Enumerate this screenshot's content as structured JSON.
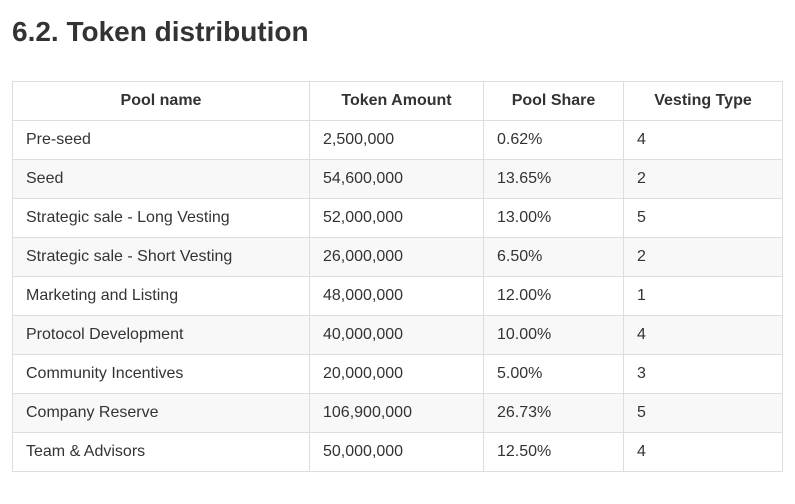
{
  "section": {
    "title": "6.2. Token distribution"
  },
  "table": {
    "headers": [
      "Pool name",
      "Token Amount",
      "Pool Share",
      "Vesting Type"
    ],
    "rows": [
      [
        "Pre-seed",
        "2,500,000",
        "0.62%",
        "4"
      ],
      [
        "Seed",
        "54,600,000",
        "13.65%",
        "2"
      ],
      [
        "Strategic sale - Long Vesting",
        "52,000,000",
        "13.00%",
        "5"
      ],
      [
        "Strategic sale - Short Vesting",
        "26,000,000",
        "6.50%",
        "2"
      ],
      [
        "Marketing and Listing",
        "48,000,000",
        "12.00%",
        "1"
      ],
      [
        "Protocol Development",
        "40,000,000",
        "10.00%",
        "4"
      ],
      [
        "Community Incentives",
        "20,000,000",
        "5.00%",
        "3"
      ],
      [
        "Company Reserve",
        "106,900,000",
        "26.73%",
        "5"
      ],
      [
        "Team & Advisors",
        "50,000,000",
        "12.50%",
        "4"
      ]
    ]
  }
}
